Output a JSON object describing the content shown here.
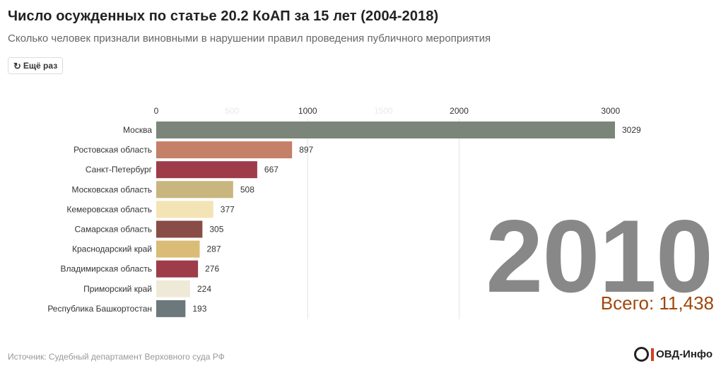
{
  "title": "Число осужденных по статье 20.2 КоАП за 15 лет (2004-2018)",
  "subtitle": "Сколько человек признали виновными в нарушении правил проведения публичного мероприятия",
  "replay_button": {
    "icon": "↻",
    "label": "Ещё раз"
  },
  "year": "2010",
  "total_label": "Всего: 11,438",
  "source": "Источник: Судебный департамент Верховного суда РФ",
  "logo": {
    "icon": "ovd-info-logo",
    "text": "ОВД-Инфо",
    "accent_color": "#d63b1f"
  },
  "chart_data": {
    "type": "bar",
    "orientation": "horizontal",
    "categories": [
      "Москва",
      "Ростовская область",
      "Санкт-Петербург",
      "Московская область",
      "Кемеровская область",
      "Самарская область",
      "Краснодарский край",
      "Владимирская область",
      "Приморский край",
      "Республика Башкортостан"
    ],
    "values": [
      3029,
      897,
      667,
      508,
      377,
      305,
      287,
      276,
      224,
      193
    ],
    "colors": [
      "#7b8579",
      "#c48068",
      "#9e3c4a",
      "#c9b67e",
      "#f3e4b5",
      "#8a4c46",
      "#dbbc77",
      "#9e3c4a",
      "#efead8",
      "#6c787b"
    ],
    "xlim": [
      0,
      3029
    ],
    "ticks": [
      {
        "value": 0,
        "label": "0",
        "faded": false
      },
      {
        "value": 500,
        "label": "500",
        "faded": true
      },
      {
        "value": 1000,
        "label": "1000",
        "faded": false
      },
      {
        "value": 1500,
        "label": "1500",
        "faded": true
      },
      {
        "value": 2000,
        "label": "2000",
        "faded": false
      },
      {
        "value": 3000,
        "label": "3000",
        "faded": false
      }
    ],
    "gridlines": [
      1000,
      2000
    ],
    "xlabel": "",
    "ylabel": ""
  }
}
